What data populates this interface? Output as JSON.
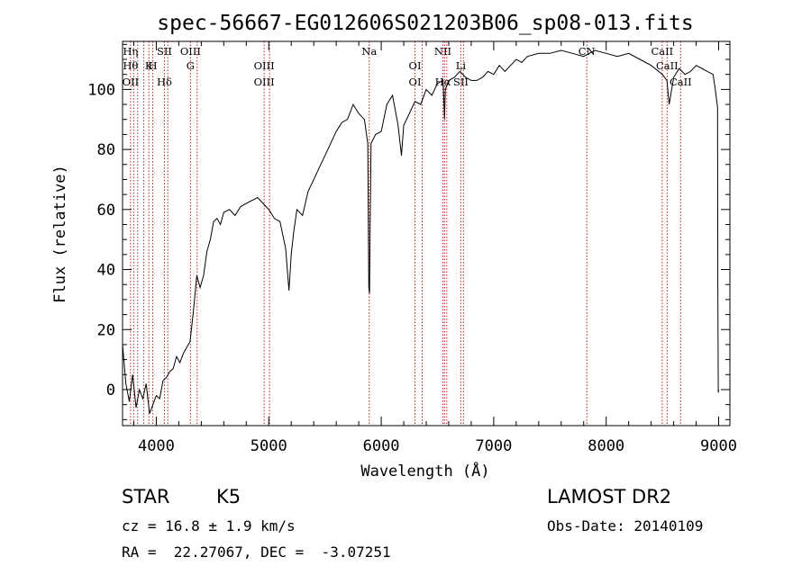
{
  "chart_data": {
    "type": "line",
    "title": "spec-56667-EG012606S021203B06_sp08-013.fits",
    "xlabel": "Wavelength (Å)",
    "ylabel": "Flux (relative)",
    "xlim": [
      3700,
      9100
    ],
    "ylim": [
      -12,
      116
    ],
    "xticks": [
      4000,
      5000,
      6000,
      7000,
      8000,
      9000
    ],
    "yticks": [
      0,
      20,
      40,
      60,
      80,
      100
    ],
    "grid": false,
    "series": [
      {
        "x": [
          3700,
          3730,
          3760,
          3790,
          3820,
          3850,
          3880,
          3910,
          3940,
          3970,
          4000,
          4030,
          4060,
          4090,
          4120,
          4150,
          4180,
          4210,
          4240,
          4270,
          4300,
          4330,
          4360,
          4390,
          4420,
          4450,
          4480,
          4510,
          4540,
          4570,
          4600,
          4650,
          4700,
          4750,
          4800,
          4850,
          4900,
          4950,
          5000,
          5050,
          5100,
          5150,
          5180,
          5200,
          5220,
          5250,
          5300,
          5350,
          5400,
          5450,
          5500,
          5550,
          5600,
          5650,
          5700,
          5750,
          5800,
          5850,
          5880,
          5890,
          5896,
          5902,
          5910,
          5950,
          6000,
          6050,
          6100,
          6150,
          6180,
          6200,
          6250,
          6300,
          6350,
          6400,
          6450,
          6500,
          6550,
          6563,
          6570,
          6600,
          6650,
          6700,
          6750,
          6800,
          6850,
          6900,
          6950,
          7000,
          7050,
          7100,
          7150,
          7200,
          7250,
          7300,
          7400,
          7500,
          7600,
          7700,
          7800,
          7900,
          8000,
          8100,
          8200,
          8300,
          8400,
          8500,
          8540,
          8560,
          8600,
          8650,
          8700,
          8750,
          8800,
          8850,
          8900,
          8950,
          8970,
          8990,
          8993,
          8997,
          9000
        ],
        "values": [
          15,
          2,
          -4,
          5,
          -6,
          0,
          -3,
          2,
          -8,
          -5,
          -2,
          -3,
          3,
          4,
          6,
          7,
          11,
          9,
          12,
          14,
          16,
          26,
          38,
          34,
          38,
          46,
          50,
          56,
          57,
          55,
          59,
          60,
          58,
          61,
          62,
          63,
          64,
          62,
          60,
          57,
          56,
          47,
          33,
          45,
          52,
          60,
          58,
          66,
          70,
          74,
          78,
          82,
          86,
          89,
          90,
          95,
          92,
          90,
          82,
          34,
          32,
          56,
          82,
          85,
          86,
          95,
          98,
          88,
          78,
          88,
          92,
          96,
          95,
          100,
          98,
          102,
          103,
          90,
          100,
          103,
          104,
          106,
          104,
          103,
          103,
          104,
          106,
          105,
          108,
          106,
          108,
          110,
          109,
          111,
          112,
          112,
          113,
          112,
          111,
          113,
          112,
          111,
          112,
          110,
          108,
          105,
          103,
          95,
          104,
          107,
          105,
          106,
          108,
          107,
          106,
          105,
          100,
          94,
          36,
          -1,
          0
        ]
      }
    ],
    "line_labels": [
      {
        "wl": 3771,
        "top": "Hη",
        "mid": "Hθ",
        "bot": "OII"
      },
      {
        "wl": 3799,
        "top": "",
        "mid": "",
        "bot": ""
      },
      {
        "wl": 3835,
        "top": "",
        "mid": "",
        "bot": ""
      },
      {
        "wl": 3889,
        "top": "",
        "mid": "",
        "bot": ""
      },
      {
        "wl": 3934,
        "top": "",
        "mid": "K",
        "bot": ""
      },
      {
        "wl": 3969,
        "top": "",
        "mid": "H",
        "bot": ""
      },
      {
        "wl": 4072,
        "top": "SII",
        "mid": "",
        "bot": "Hδ"
      },
      {
        "wl": 4102,
        "top": "",
        "mid": "",
        "bot": ""
      },
      {
        "wl": 4304,
        "top": "OIII",
        "mid": "G",
        "bot": ""
      },
      {
        "wl": 4363,
        "top": "",
        "mid": "",
        "bot": ""
      },
      {
        "wl": 4959,
        "top": "",
        "mid": "OIII",
        "bot": "OIII"
      },
      {
        "wl": 5007,
        "top": "",
        "mid": "",
        "bot": ""
      },
      {
        "wl": 5893,
        "top": "Na",
        "mid": "",
        "bot": ""
      },
      {
        "wl": 6300,
        "top": "",
        "mid": "OI",
        "bot": "OI"
      },
      {
        "wl": 6364,
        "top": "",
        "mid": "",
        "bot": ""
      },
      {
        "wl": 6548,
        "top": "NII",
        "mid": "",
        "bot": "Hα"
      },
      {
        "wl": 6563,
        "top": "",
        "mid": "",
        "bot": ""
      },
      {
        "wl": 6583,
        "top": "",
        "mid": "",
        "bot": ""
      },
      {
        "wl": 6708,
        "top": "",
        "mid": "Li",
        "bot": "SII"
      },
      {
        "wl": 6731,
        "top": "",
        "mid": "",
        "bot": ""
      },
      {
        "wl": 7828,
        "top": "CN",
        "mid": "",
        "bot": ""
      },
      {
        "wl": 8498,
        "top": "CaII",
        "mid": "",
        "bot": ""
      },
      {
        "wl": 8542,
        "top": "",
        "mid": "CaII",
        "bot": ""
      },
      {
        "wl": 8662,
        "top": "",
        "mid": "",
        "bot": "CaII"
      }
    ]
  },
  "info": {
    "object_class": "STAR",
    "subclass": "K5",
    "survey": "LAMOST DR2",
    "redshift": "cz = 16.8 ± 1.9 km/s",
    "obs_date": "Obs-Date: 20140109",
    "coords": "RA =  22.27067, DEC =  -3.07251"
  }
}
